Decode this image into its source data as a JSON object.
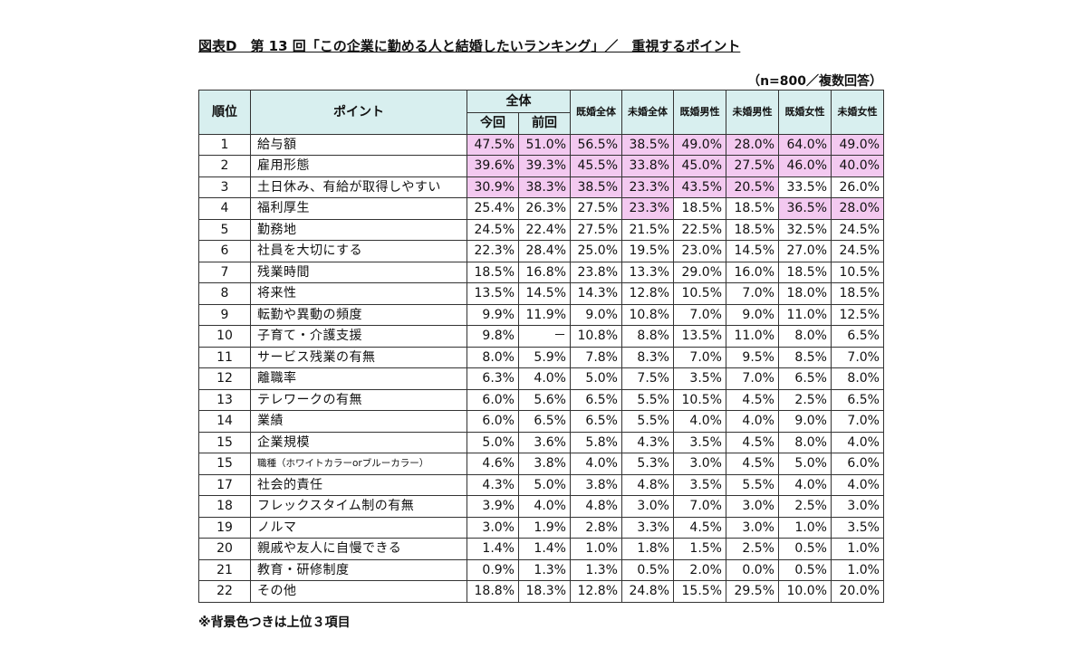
{
  "title": "図表D　第 13 回「この企業に勤める人と結婚したいランキング」／　重視するポイント",
  "sample_note": "（n=800／複数回答）",
  "footnote": "※背景色つきは上位３項目",
  "headers": {
    "rank": "順位",
    "point": "ポイント",
    "overall": "全体",
    "current": "今回",
    "previous": "前回",
    "married_all": "既婚全体",
    "unmarried_all": "未婚全体",
    "married_male": "既婚男性",
    "unmarried_male": "未婚男性",
    "married_female": "既婚女性",
    "unmarried_female": "未婚女性"
  },
  "highlight_color": "#f3c9f0",
  "rows": [
    {
      "rank": "1",
      "point": "給与額",
      "v": [
        "47.5%",
        "51.0%",
        "56.5%",
        "38.5%",
        "49.0%",
        "28.0%",
        "64.0%",
        "49.0%"
      ],
      "hl": [
        true,
        true,
        true,
        true,
        true,
        true,
        true,
        true
      ]
    },
    {
      "rank": "2",
      "point": "雇用形態",
      "v": [
        "39.6%",
        "39.3%",
        "45.5%",
        "33.8%",
        "45.0%",
        "27.5%",
        "46.0%",
        "40.0%"
      ],
      "hl": [
        true,
        true,
        true,
        true,
        true,
        true,
        true,
        true
      ]
    },
    {
      "rank": "3",
      "point": "土日休み、有給が取得しやすい",
      "v": [
        "30.9%",
        "38.3%",
        "38.5%",
        "23.3%",
        "43.5%",
        "20.5%",
        "33.5%",
        "26.0%"
      ],
      "hl": [
        true,
        true,
        true,
        true,
        true,
        true,
        false,
        false
      ]
    },
    {
      "rank": "4",
      "point": "福利厚生",
      "v": [
        "25.4%",
        "26.3%",
        "27.5%",
        "23.3%",
        "18.5%",
        "18.5%",
        "36.5%",
        "28.0%"
      ],
      "hl": [
        false,
        false,
        false,
        true,
        false,
        false,
        true,
        true
      ]
    },
    {
      "rank": "5",
      "point": "勤務地",
      "v": [
        "24.5%",
        "22.4%",
        "27.5%",
        "21.5%",
        "22.5%",
        "18.5%",
        "32.5%",
        "24.5%"
      ],
      "hl": [
        false,
        false,
        false,
        false,
        false,
        false,
        false,
        false
      ]
    },
    {
      "rank": "6",
      "point": "社員を大切にする",
      "v": [
        "22.3%",
        "28.4%",
        "25.0%",
        "19.5%",
        "23.0%",
        "14.5%",
        "27.0%",
        "24.5%"
      ],
      "hl": [
        false,
        false,
        false,
        false,
        false,
        false,
        false,
        false
      ]
    },
    {
      "rank": "7",
      "point": "残業時間",
      "v": [
        "18.5%",
        "16.8%",
        "23.8%",
        "13.3%",
        "29.0%",
        "16.0%",
        "18.5%",
        "10.5%"
      ],
      "hl": [
        false,
        false,
        false,
        false,
        false,
        false,
        false,
        false
      ]
    },
    {
      "rank": "8",
      "point": "将来性",
      "v": [
        "13.5%",
        "14.5%",
        "14.3%",
        "12.8%",
        "10.5%",
        "7.0%",
        "18.0%",
        "18.5%"
      ],
      "hl": [
        false,
        false,
        false,
        false,
        false,
        false,
        false,
        false
      ]
    },
    {
      "rank": "9",
      "point": "転勤や異動の頻度",
      "v": [
        "9.9%",
        "11.9%",
        "9.0%",
        "10.8%",
        "7.0%",
        "9.0%",
        "11.0%",
        "12.5%"
      ],
      "hl": [
        false,
        false,
        false,
        false,
        false,
        false,
        false,
        false
      ]
    },
    {
      "rank": "10",
      "point": "子育て・介護支援",
      "v": [
        "9.8%",
        "－",
        "10.8%",
        "8.8%",
        "13.5%",
        "11.0%",
        "8.0%",
        "6.5%"
      ],
      "hl": [
        false,
        false,
        false,
        false,
        false,
        false,
        false,
        false
      ]
    },
    {
      "rank": "11",
      "point": "サービス残業の有無",
      "v": [
        "8.0%",
        "5.9%",
        "7.8%",
        "8.3%",
        "7.0%",
        "9.5%",
        "8.5%",
        "7.0%"
      ],
      "hl": [
        false,
        false,
        false,
        false,
        false,
        false,
        false,
        false
      ]
    },
    {
      "rank": "12",
      "point": "離職率",
      "v": [
        "6.3%",
        "4.0%",
        "5.0%",
        "7.5%",
        "3.5%",
        "7.0%",
        "6.5%",
        "8.0%"
      ],
      "hl": [
        false,
        false,
        false,
        false,
        false,
        false,
        false,
        false
      ]
    },
    {
      "rank": "13",
      "point": "テレワークの有無",
      "v": [
        "6.0%",
        "5.6%",
        "6.5%",
        "5.5%",
        "10.5%",
        "4.5%",
        "2.5%",
        "6.5%"
      ],
      "hl": [
        false,
        false,
        false,
        false,
        false,
        false,
        false,
        false
      ]
    },
    {
      "rank": "14",
      "point": "業績",
      "v": [
        "6.0%",
        "6.5%",
        "6.5%",
        "5.5%",
        "4.0%",
        "4.0%",
        "9.0%",
        "7.0%"
      ],
      "hl": [
        false,
        false,
        false,
        false,
        false,
        false,
        false,
        false
      ]
    },
    {
      "rank": "15",
      "point": "企業規模",
      "v": [
        "5.0%",
        "3.6%",
        "5.8%",
        "4.3%",
        "3.5%",
        "4.5%",
        "8.0%",
        "4.0%"
      ],
      "hl": [
        false,
        false,
        false,
        false,
        false,
        false,
        false,
        false
      ]
    },
    {
      "rank": "15",
      "point": "職種（ホワイトカラーorブルーカラー）",
      "v": [
        "4.6%",
        "3.8%",
        "4.0%",
        "5.3%",
        "3.0%",
        "4.5%",
        "5.0%",
        "6.0%"
      ],
      "hl": [
        false,
        false,
        false,
        false,
        false,
        false,
        false,
        false
      ],
      "tiny": true
    },
    {
      "rank": "17",
      "point": "社会的責任",
      "v": [
        "4.3%",
        "5.0%",
        "3.8%",
        "4.8%",
        "3.5%",
        "5.5%",
        "4.0%",
        "4.0%"
      ],
      "hl": [
        false,
        false,
        false,
        false,
        false,
        false,
        false,
        false
      ]
    },
    {
      "rank": "18",
      "point": "フレックスタイム制の有無",
      "v": [
        "3.9%",
        "4.0%",
        "4.8%",
        "3.0%",
        "7.0%",
        "3.0%",
        "2.5%",
        "3.0%"
      ],
      "hl": [
        false,
        false,
        false,
        false,
        false,
        false,
        false,
        false
      ]
    },
    {
      "rank": "19",
      "point": "ノルマ",
      "v": [
        "3.0%",
        "1.9%",
        "2.8%",
        "3.3%",
        "4.5%",
        "3.0%",
        "1.0%",
        "3.5%"
      ],
      "hl": [
        false,
        false,
        false,
        false,
        false,
        false,
        false,
        false
      ]
    },
    {
      "rank": "20",
      "point": "親戚や友人に自慢できる",
      "v": [
        "1.4%",
        "1.4%",
        "1.0%",
        "1.8%",
        "1.5%",
        "2.5%",
        "0.5%",
        "1.0%"
      ],
      "hl": [
        false,
        false,
        false,
        false,
        false,
        false,
        false,
        false
      ]
    },
    {
      "rank": "21",
      "point": "教育・研修制度",
      "v": [
        "0.9%",
        "1.3%",
        "1.3%",
        "0.5%",
        "2.0%",
        "0.0%",
        "0.5%",
        "1.0%"
      ],
      "hl": [
        false,
        false,
        false,
        false,
        false,
        false,
        false,
        false
      ]
    },
    {
      "rank": "22",
      "point": "その他",
      "v": [
        "18.8%",
        "18.3%",
        "12.8%",
        "24.8%",
        "15.5%",
        "29.5%",
        "10.0%",
        "20.0%"
      ],
      "hl": [
        false,
        false,
        false,
        false,
        false,
        false,
        false,
        false
      ]
    }
  ]
}
